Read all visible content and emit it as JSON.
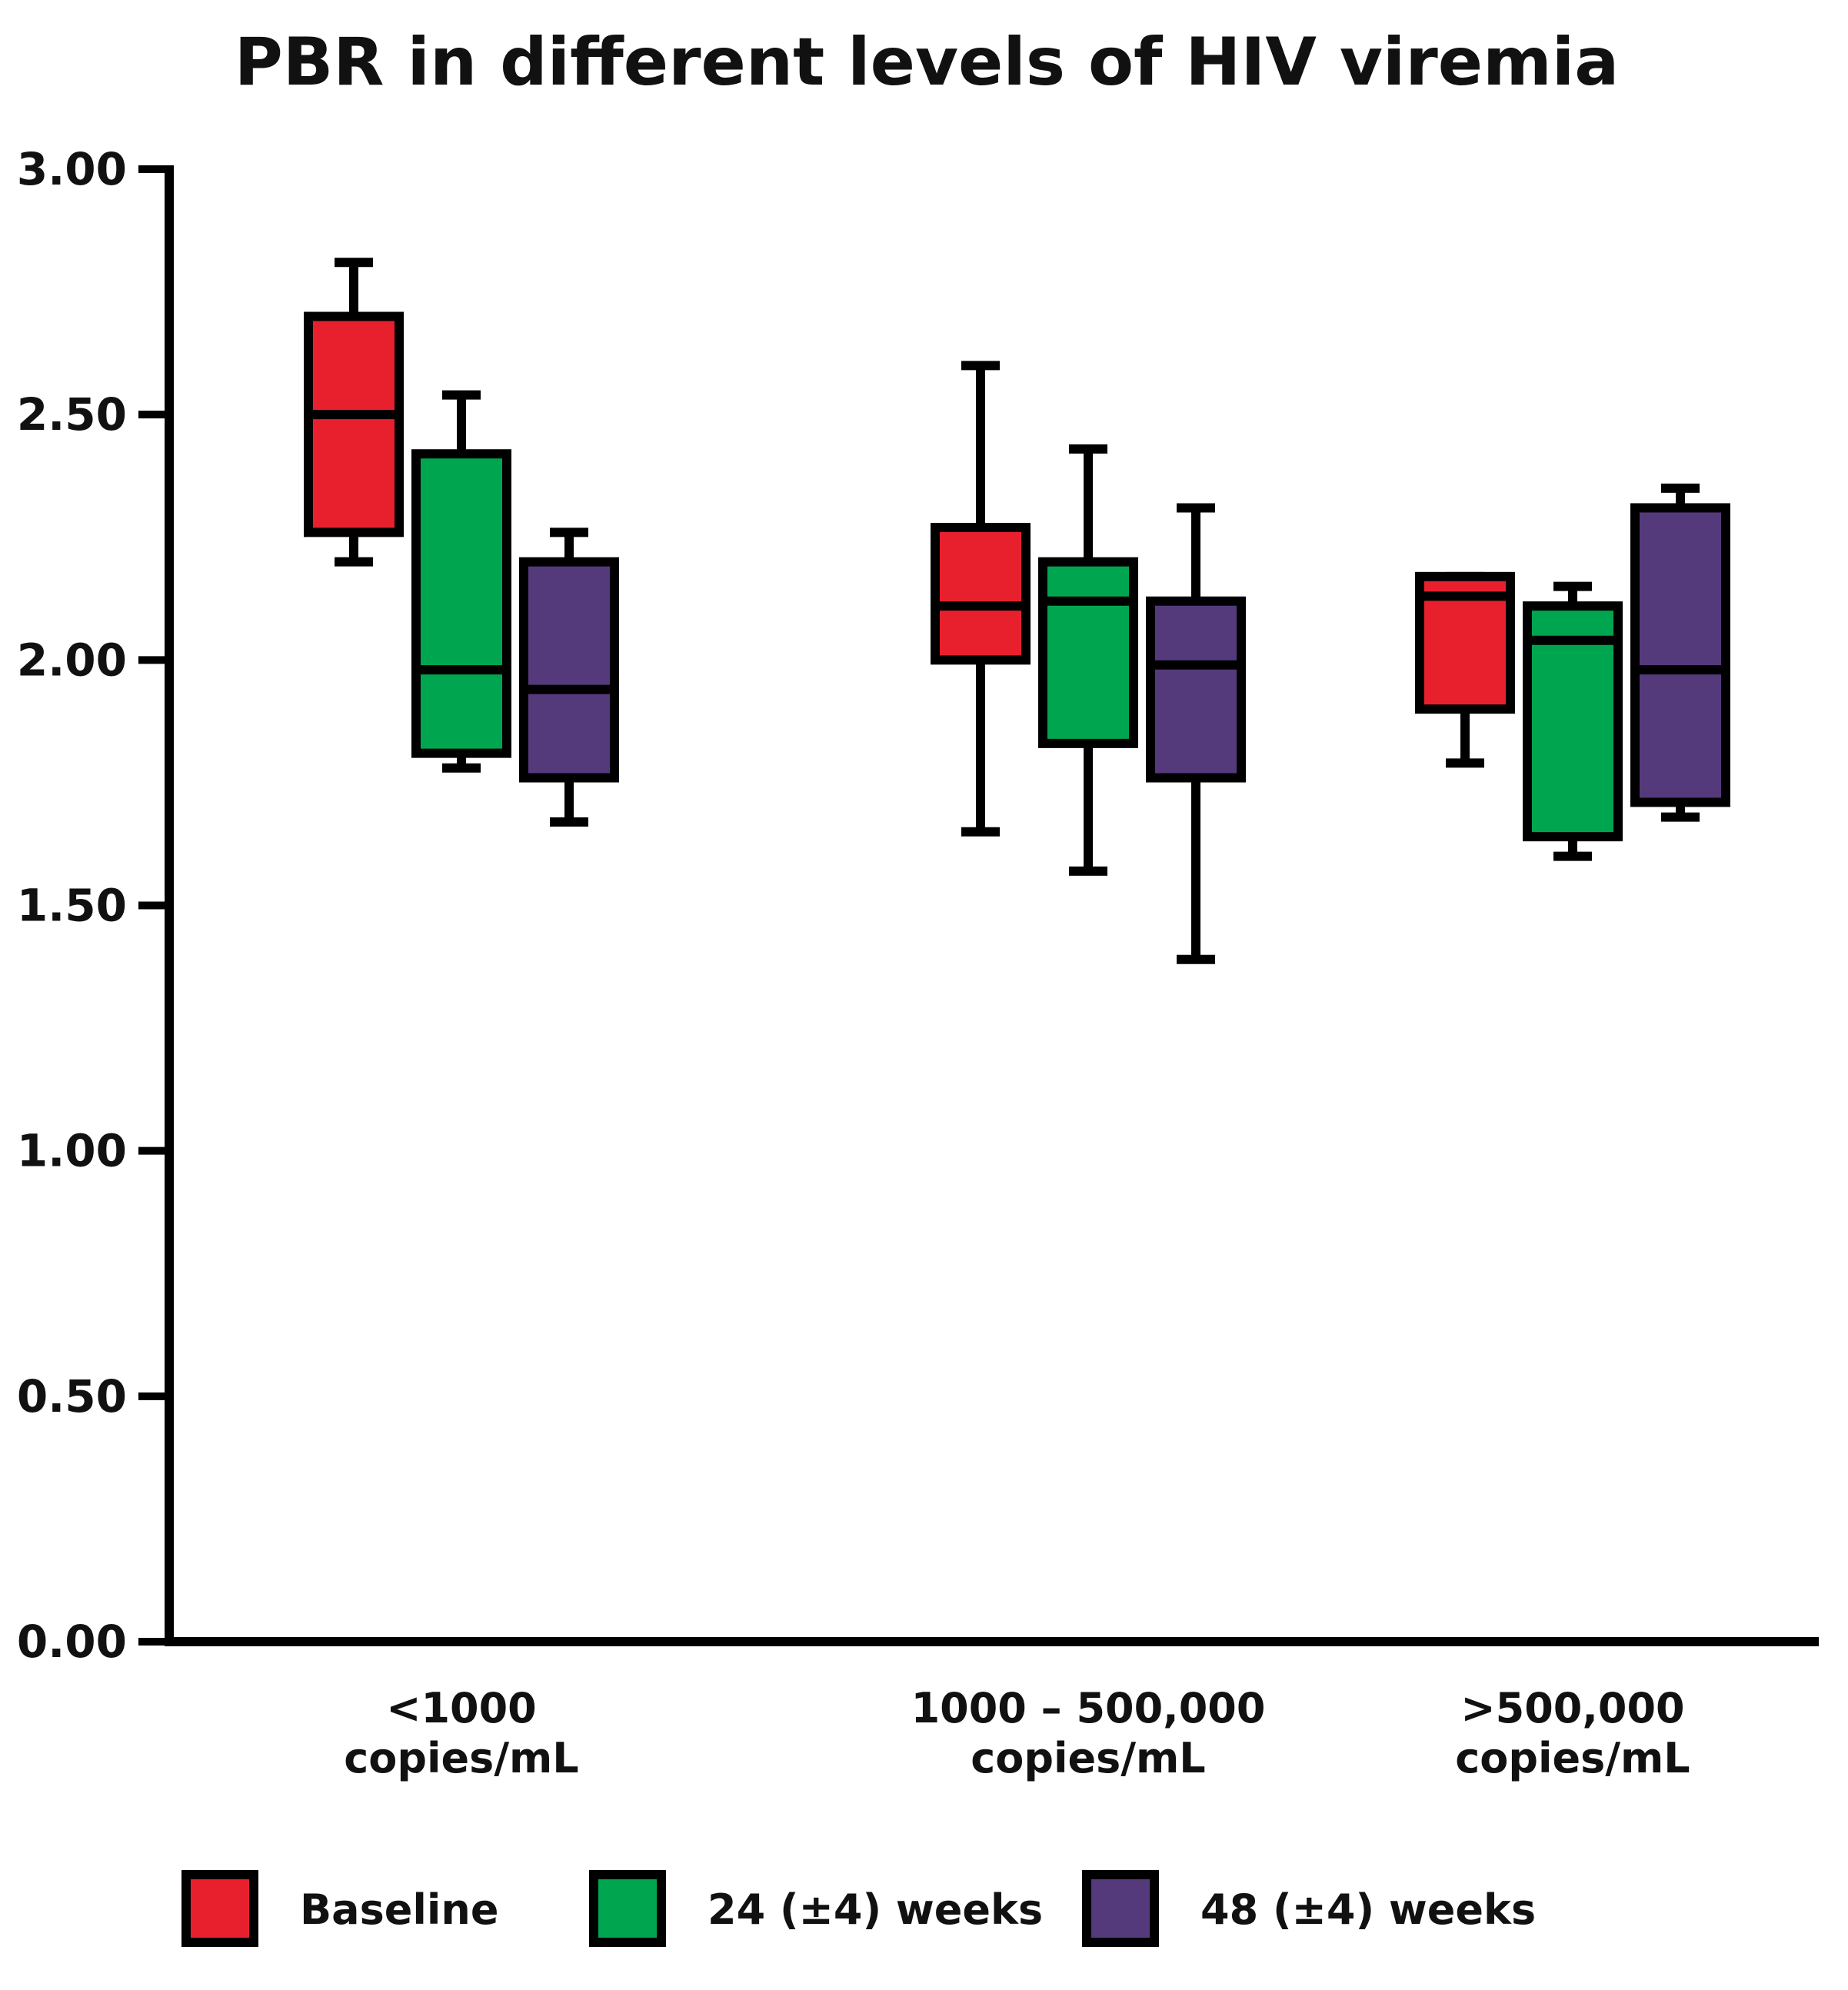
{
  "chart_data": {
    "type": "box",
    "title": "PBR in different levels of HIV viremia",
    "xlabel": "",
    "ylabel": "",
    "ylim": [
      0,
      3
    ],
    "yticks": [
      0,
      0.5,
      1,
      1.5,
      2,
      2.5,
      3
    ],
    "ytick_labels": [
      "0.00",
      "0.50",
      "1.00",
      "1.50",
      "2.00",
      "2.50",
      "3.00"
    ],
    "grid": false,
    "legend_position": "bottom",
    "categories": [
      {
        "line1": "<1000",
        "line2": "copies/mL"
      },
      {
        "line1": "1000 – 500,000",
        "line2": "copies/mL"
      },
      {
        "line1": ">500,000",
        "line2": "copies/mL"
      }
    ],
    "series": [
      {
        "name": "Baseline",
        "color": "#e8202e",
        "boxes": [
          {
            "min": 2.2,
            "q1": 2.26,
            "median": 2.5,
            "q3": 2.7,
            "max": 2.81
          },
          {
            "min": 1.65,
            "q1": 2.0,
            "median": 2.11,
            "q3": 2.27,
            "max": 2.6
          },
          {
            "min": 1.79,
            "q1": 1.9,
            "median": 2.13,
            "q3": 2.17,
            "max": 2.17
          }
        ]
      },
      {
        "name": "24 (±4) weeks",
        "color": "#00a550",
        "boxes": [
          {
            "min": 1.78,
            "q1": 1.81,
            "median": 1.98,
            "q3": 2.42,
            "max": 2.54
          },
          {
            "min": 1.57,
            "q1": 1.83,
            "median": 2.12,
            "q3": 2.2,
            "max": 2.43
          },
          {
            "min": 1.6,
            "q1": 1.64,
            "median": 2.04,
            "q3": 2.11,
            "max": 2.15
          }
        ]
      },
      {
        "name": "48 (±4) weeks",
        "color": "#553a7b",
        "boxes": [
          {
            "min": 1.67,
            "q1": 1.76,
            "median": 1.94,
            "q3": 2.2,
            "max": 2.26
          },
          {
            "min": 1.39,
            "q1": 1.76,
            "median": 1.99,
            "q3": 2.12,
            "max": 2.31
          },
          {
            "min": 1.68,
            "q1": 1.71,
            "median": 1.98,
            "q3": 2.31,
            "max": 2.35
          }
        ]
      }
    ]
  }
}
